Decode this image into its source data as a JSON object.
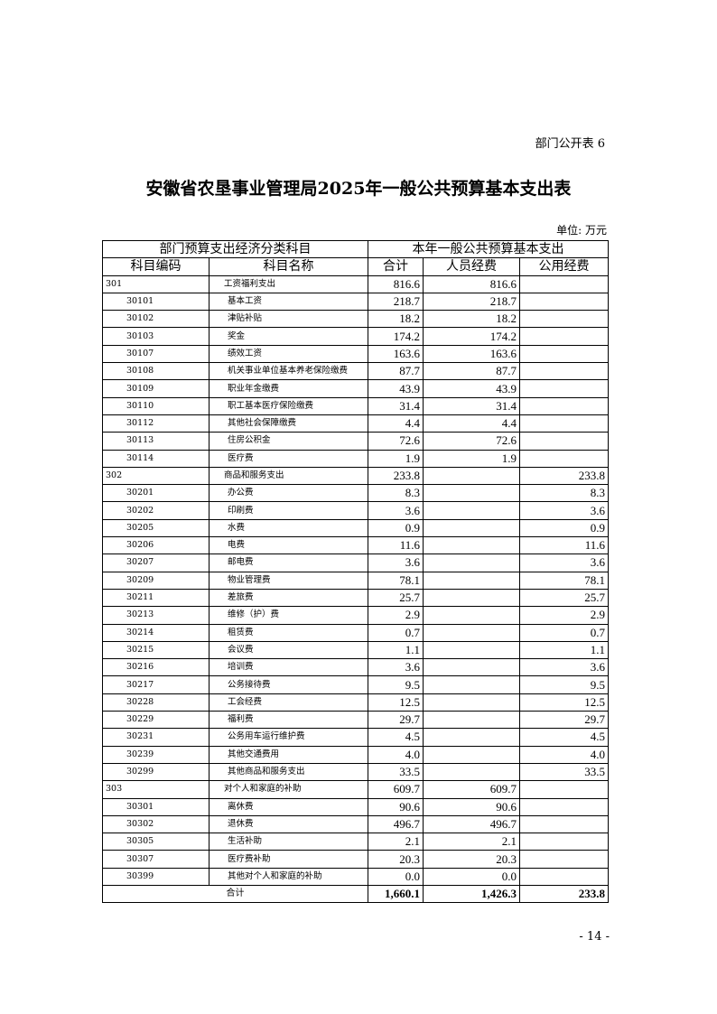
{
  "header": {
    "tag": "部门公开表 6",
    "title": "安徽省农垦事业管理局2025年一般公共预算基本支出表",
    "unit": "单位: 万元"
  },
  "table": {
    "group_left": "部门预算支出经济分类科目",
    "group_right": "本年一般公共预算基本支出",
    "columns": [
      "科目编码",
      "科目名称",
      "合计",
      "人员经费",
      "公用经费"
    ],
    "rows": [
      {
        "code": "301",
        "name": "工资福利支出",
        "total": "816.6",
        "personnel": "816.6",
        "public": "",
        "level": 1
      },
      {
        "code": "30101",
        "name": "基本工资",
        "total": "218.7",
        "personnel": "218.7",
        "public": "",
        "level": 2
      },
      {
        "code": "30102",
        "name": "津贴补贴",
        "total": "18.2",
        "personnel": "18.2",
        "public": "",
        "level": 2
      },
      {
        "code": "30103",
        "name": "奖金",
        "total": "174.2",
        "personnel": "174.2",
        "public": "",
        "level": 2
      },
      {
        "code": "30107",
        "name": "绩效工资",
        "total": "163.6",
        "personnel": "163.6",
        "public": "",
        "level": 2
      },
      {
        "code": "30108",
        "name": "机关事业单位基本养老保险缴费",
        "total": "87.7",
        "personnel": "87.7",
        "public": "",
        "level": 2
      },
      {
        "code": "30109",
        "name": "职业年金缴费",
        "total": "43.9",
        "personnel": "43.9",
        "public": "",
        "level": 2
      },
      {
        "code": "30110",
        "name": "职工基本医疗保险缴费",
        "total": "31.4",
        "personnel": "31.4",
        "public": "",
        "level": 2
      },
      {
        "code": "30112",
        "name": "其他社会保障缴费",
        "total": "4.4",
        "personnel": "4.4",
        "public": "",
        "level": 2
      },
      {
        "code": "30113",
        "name": "住房公积金",
        "total": "72.6",
        "personnel": "72.6",
        "public": "",
        "level": 2
      },
      {
        "code": "30114",
        "name": "医疗费",
        "total": "1.9",
        "personnel": "1.9",
        "public": "",
        "level": 2
      },
      {
        "code": "302",
        "name": "商品和服务支出",
        "total": "233.8",
        "personnel": "",
        "public": "233.8",
        "level": 1
      },
      {
        "code": "30201",
        "name": "办公费",
        "total": "8.3",
        "personnel": "",
        "public": "8.3",
        "level": 2
      },
      {
        "code": "30202",
        "name": "印刷费",
        "total": "3.6",
        "personnel": "",
        "public": "3.6",
        "level": 2
      },
      {
        "code": "30205",
        "name": "水费",
        "total": "0.9",
        "personnel": "",
        "public": "0.9",
        "level": 2
      },
      {
        "code": "30206",
        "name": "电费",
        "total": "11.6",
        "personnel": "",
        "public": "11.6",
        "level": 2
      },
      {
        "code": "30207",
        "name": "邮电费",
        "total": "3.6",
        "personnel": "",
        "public": "3.6",
        "level": 2
      },
      {
        "code": "30209",
        "name": "物业管理费",
        "total": "78.1",
        "personnel": "",
        "public": "78.1",
        "level": 2
      },
      {
        "code": "30211",
        "name": "差旅费",
        "total": "25.7",
        "personnel": "",
        "public": "25.7",
        "level": 2
      },
      {
        "code": "30213",
        "name": "维修（护）费",
        "total": "2.9",
        "personnel": "",
        "public": "2.9",
        "level": 2
      },
      {
        "code": "30214",
        "name": "租赁费",
        "total": "0.7",
        "personnel": "",
        "public": "0.7",
        "level": 2
      },
      {
        "code": "30215",
        "name": "会议费",
        "total": "1.1",
        "personnel": "",
        "public": "1.1",
        "level": 2
      },
      {
        "code": "30216",
        "name": "培训费",
        "total": "3.6",
        "personnel": "",
        "public": "3.6",
        "level": 2
      },
      {
        "code": "30217",
        "name": "公务接待费",
        "total": "9.5",
        "personnel": "",
        "public": "9.5",
        "level": 2
      },
      {
        "code": "30228",
        "name": "工会经费",
        "total": "12.5",
        "personnel": "",
        "public": "12.5",
        "level": 2
      },
      {
        "code": "30229",
        "name": "福利费",
        "total": "29.7",
        "personnel": "",
        "public": "29.7",
        "level": 2
      },
      {
        "code": "30231",
        "name": "公务用车运行维护费",
        "total": "4.5",
        "personnel": "",
        "public": "4.5",
        "level": 2
      },
      {
        "code": "30239",
        "name": "其他交通费用",
        "total": "4.0",
        "personnel": "",
        "public": "4.0",
        "level": 2
      },
      {
        "code": "30299",
        "name": "其他商品和服务支出",
        "total": "33.5",
        "personnel": "",
        "public": "33.5",
        "level": 2
      },
      {
        "code": "303",
        "name": "对个人和家庭的补助",
        "total": "609.7",
        "personnel": "609.7",
        "public": "",
        "level": 1
      },
      {
        "code": "30301",
        "name": "离休费",
        "total": "90.6",
        "personnel": "90.6",
        "public": "",
        "level": 2
      },
      {
        "code": "30302",
        "name": "退休费",
        "total": "496.7",
        "personnel": "496.7",
        "public": "",
        "level": 2
      },
      {
        "code": "30305",
        "name": "生活补助",
        "total": "2.1",
        "personnel": "2.1",
        "public": "",
        "level": 2
      },
      {
        "code": "30307",
        "name": "医疗费补助",
        "total": "20.3",
        "personnel": "20.3",
        "public": "",
        "level": 2
      },
      {
        "code": "30399",
        "name": "其他对个人和家庭的补助",
        "total": "0.0",
        "personnel": "0.0",
        "public": "",
        "level": 2
      }
    ],
    "grand_total": {
      "label": "合计",
      "total": "1,660.1",
      "personnel": "1,426.3",
      "public": "233.8"
    }
  },
  "footer": {
    "page_number": "- 14 -"
  }
}
